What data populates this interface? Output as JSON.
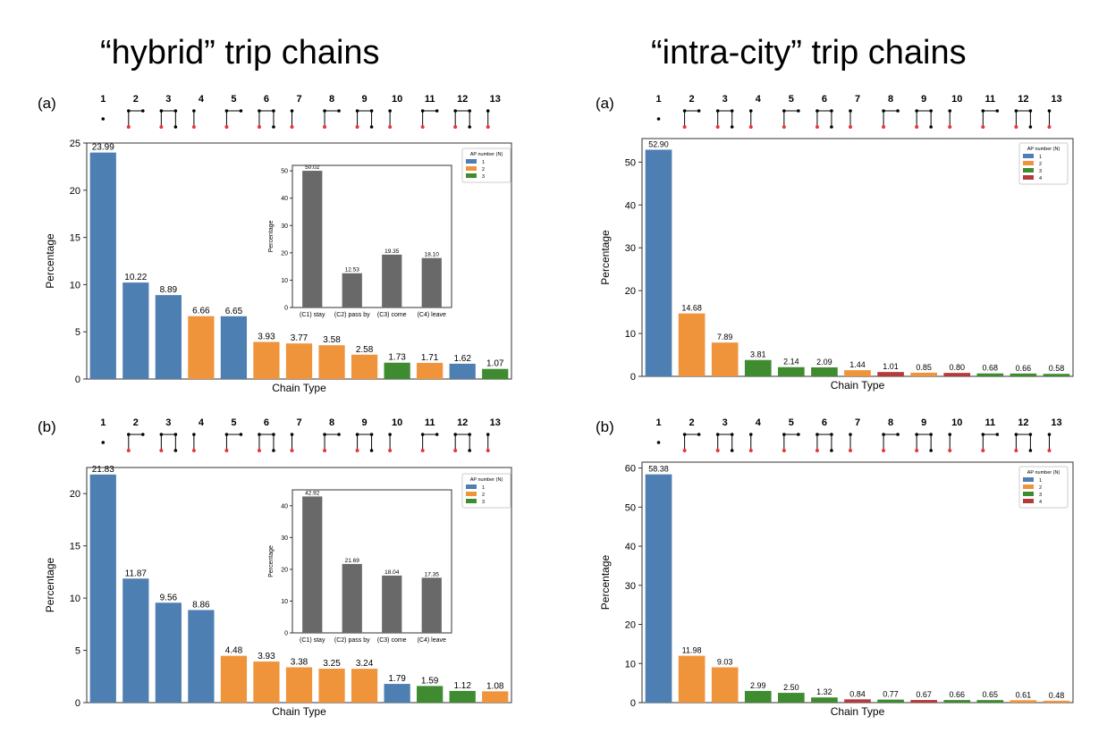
{
  "titles": {
    "left": "“hybrid” trip chains",
    "right": "“intra-city” trip chains"
  },
  "colors": {
    "1": "#4e7fb2",
    "2": "#f0943c",
    "3": "#3e8c2f",
    "4": "#b73a3a",
    "inset": "#696969"
  },
  "chart_data": [
    {
      "id": "hybrid-a",
      "panel": "(a)",
      "type": "bar",
      "categories": [
        "1",
        "2",
        "3",
        "4",
        "5",
        "6",
        "7",
        "8",
        "9",
        "10",
        "11",
        "12",
        "13"
      ],
      "values": [
        23.99,
        10.22,
        8.89,
        6.66,
        6.65,
        3.93,
        3.77,
        3.58,
        2.58,
        1.73,
        1.71,
        1.62,
        1.07
      ],
      "labels": [
        "23.99",
        "10.22",
        "8.89",
        "6.66",
        "6.65",
        "3.93",
        "3.77",
        "3.58",
        "2.58",
        "1.73",
        "1.71",
        "1.62",
        "1.07"
      ],
      "ap_number": [
        1,
        1,
        1,
        2,
        1,
        2,
        2,
        2,
        2,
        3,
        2,
        1,
        3
      ],
      "xlabel": "Chain Type",
      "ylabel": "Percentage",
      "ylim": [
        0,
        25
      ],
      "yticks": [
        0,
        5,
        10,
        15,
        20,
        25
      ],
      "legend": {
        "title": "AP number (N)",
        "entries": [
          "1",
          "2",
          "3"
        ],
        "placement": "top-right"
      },
      "inset": {
        "type": "bar",
        "categories": [
          "(C1) stay",
          "(C2) pass by",
          "(C3) come",
          "(C4) leave"
        ],
        "values": [
          50.02,
          12.53,
          19.35,
          18.1
        ],
        "labels": [
          "50.02",
          "12.53",
          "19.35",
          "18.10"
        ],
        "ylabel": "Percentage",
        "ylim": [
          0,
          52
        ],
        "yticks": [
          0,
          10,
          20,
          30,
          40,
          50
        ]
      }
    },
    {
      "id": "hybrid-b",
      "panel": "(b)",
      "type": "bar",
      "categories": [
        "1",
        "2",
        "3",
        "4",
        "5",
        "6",
        "7",
        "8",
        "9",
        "10",
        "11",
        "12",
        "13"
      ],
      "values": [
        21.83,
        11.87,
        9.56,
        8.86,
        4.48,
        3.93,
        3.38,
        3.25,
        3.24,
        1.79,
        1.59,
        1.12,
        1.08
      ],
      "labels": [
        "21.83",
        "11.87",
        "9.56",
        "8.86",
        "4.48",
        "3.93",
        "3.38",
        "3.25",
        "3.24",
        "1.79",
        "1.59",
        "1.12",
        "1.08"
      ],
      "ap_number": [
        1,
        1,
        1,
        1,
        2,
        2,
        2,
        2,
        2,
        1,
        3,
        3,
        2
      ],
      "xlabel": "Chain Type",
      "ylabel": "Percentage",
      "ylim": [
        0,
        22.5
      ],
      "yticks": [
        0,
        5,
        10,
        15,
        20
      ],
      "legend": {
        "title": "AP number (N)",
        "entries": [
          "1",
          "2",
          "3"
        ],
        "placement": "top-right"
      },
      "inset": {
        "type": "bar",
        "categories": [
          "(C1) stay",
          "(C2) pass by",
          "(C3) come",
          "(C4) leave"
        ],
        "values": [
          42.92,
          21.69,
          18.04,
          17.35
        ],
        "labels": [
          "42.92",
          "21.69",
          "18.04",
          "17.35"
        ],
        "ylabel": "Percentage",
        "ylim": [
          0,
          45
        ],
        "yticks": [
          0,
          10,
          20,
          30,
          40
        ]
      }
    },
    {
      "id": "intra-a",
      "panel": "(a)",
      "type": "bar",
      "categories": [
        "1",
        "2",
        "3",
        "4",
        "5",
        "6",
        "7",
        "8",
        "9",
        "10",
        "11",
        "12",
        "13"
      ],
      "values": [
        52.9,
        14.68,
        7.89,
        3.81,
        2.14,
        2.09,
        1.44,
        1.01,
        0.85,
        0.8,
        0.68,
        0.66,
        0.58
      ],
      "labels": [
        "52.90",
        "14.68",
        "7.89",
        "3.81",
        "2.14",
        "2.09",
        "1.44",
        "1.01",
        "0.85",
        "0.80",
        "0.68",
        "0.66",
        "0.58"
      ],
      "ap_number": [
        1,
        2,
        2,
        3,
        3,
        3,
        2,
        4,
        2,
        4,
        3,
        3,
        3
      ],
      "xlabel": "Chain Type",
      "ylabel": "Percentage",
      "ylim": [
        0,
        55.5
      ],
      "yticks": [
        0,
        10,
        20,
        30,
        40,
        50
      ],
      "legend": {
        "title": "AP number (N)",
        "entries": [
          "1",
          "2",
          "3",
          "4"
        ],
        "placement": "top-right"
      }
    },
    {
      "id": "intra-b",
      "panel": "(b)",
      "type": "bar",
      "categories": [
        "1",
        "2",
        "3",
        "4",
        "5",
        "6",
        "7",
        "8",
        "9",
        "10",
        "11",
        "12",
        "13"
      ],
      "values": [
        58.38,
        11.98,
        9.03,
        2.99,
        2.5,
        1.32,
        0.84,
        0.77,
        0.67,
        0.66,
        0.65,
        0.61,
        0.48
      ],
      "labels": [
        "58.38",
        "11.98",
        "9.03",
        "2.99",
        "2.50",
        "1.32",
        "0.84",
        "0.77",
        "0.67",
        "0.66",
        "0.65",
        "0.61",
        "0.48"
      ],
      "ap_number": [
        1,
        2,
        2,
        3,
        3,
        3,
        4,
        3,
        4,
        3,
        3,
        2,
        2
      ],
      "xlabel": "Chain Type",
      "ylabel": "Percentage",
      "ylim": [
        0,
        61.5
      ],
      "yticks": [
        0,
        10,
        20,
        30,
        40,
        50,
        60
      ],
      "legend": {
        "title": "AP number (N)",
        "entries": [
          "1",
          "2",
          "3",
          "4"
        ],
        "placement": "top-right"
      }
    }
  ]
}
